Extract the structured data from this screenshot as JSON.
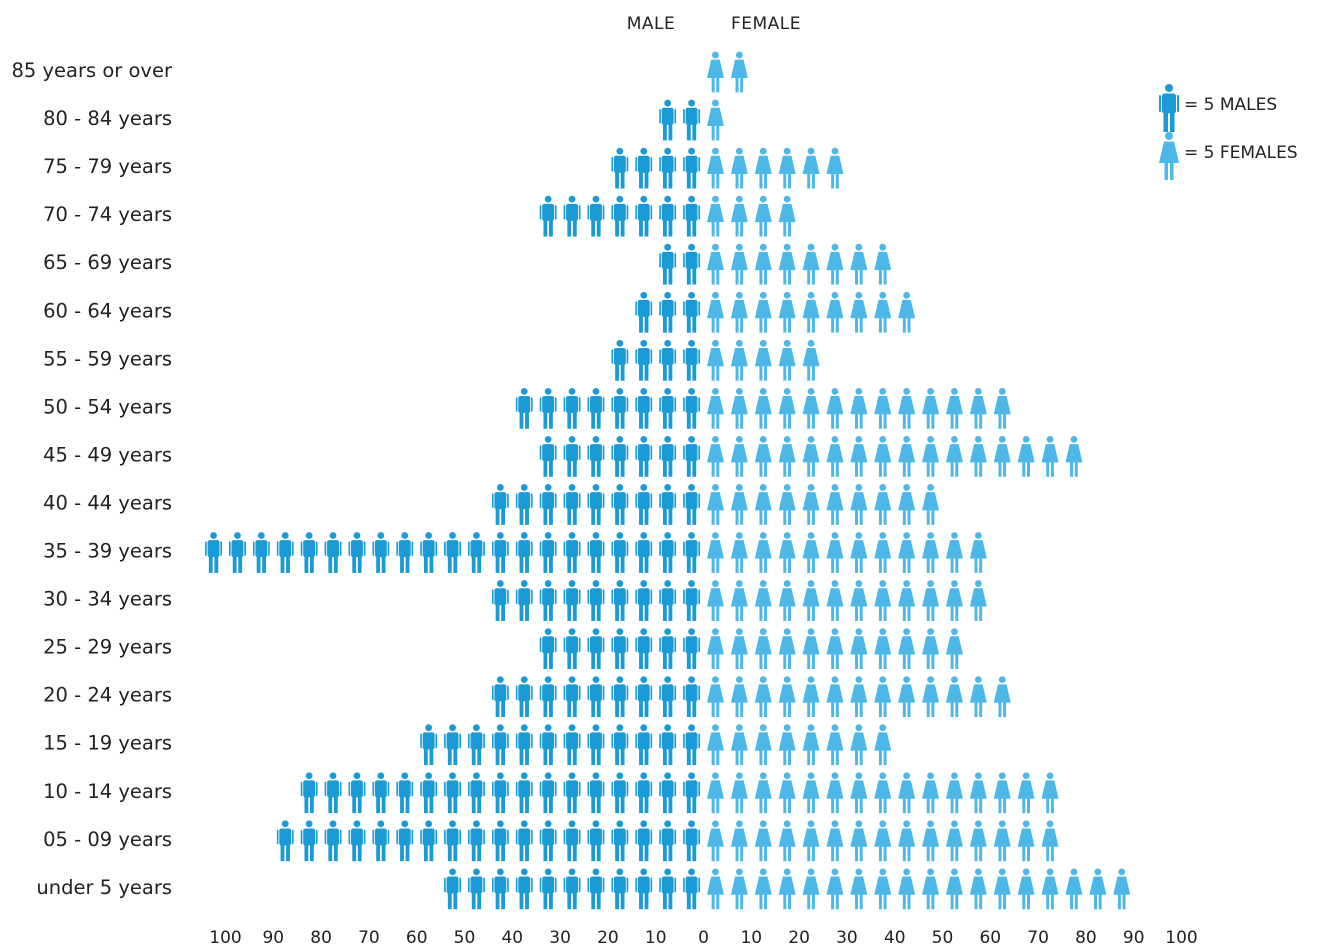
{
  "chart_data": {
    "type": "bar",
    "title": "",
    "unit_note": "each icon = 5 people",
    "column_headers": {
      "male": "MALE",
      "female": "FEMALE"
    },
    "legend": {
      "male": "= 5 MALES",
      "female": "= 5 FEMALES"
    },
    "categories": [
      "85 years or over",
      "80 - 84 years",
      "75 - 79 years",
      "70 - 74 years",
      "65 - 69 years",
      "60 - 64 years",
      "55 - 59 years",
      "50 - 54 years",
      "45 - 49 years",
      "40 - 44 years",
      "35 - 39 years",
      "30 - 34 years",
      "25 - 29 years",
      "20 - 24 years",
      "15 - 19 years",
      "10 - 14 years",
      "05 - 09 years",
      "under 5 years"
    ],
    "series": [
      {
        "name": "MALE",
        "values": [
          0,
          10,
          20,
          35,
          10,
          15,
          20,
          40,
          35,
          45,
          105,
          45,
          35,
          45,
          60,
          85,
          90,
          55
        ]
      },
      {
        "name": "FEMALE",
        "values": [
          10,
          5,
          30,
          20,
          40,
          45,
          25,
          65,
          80,
          50,
          60,
          60,
          55,
          65,
          40,
          75,
          75,
          90
        ]
      }
    ],
    "x_ticks_male": [
      "100",
      "90",
      "80",
      "70",
      "60",
      "50",
      "40",
      "30",
      "20",
      "10"
    ],
    "x_ticks_center": "0",
    "x_ticks_female": [
      "10",
      "20",
      "30",
      "40",
      "50",
      "60",
      "70",
      "80",
      "90",
      "100"
    ],
    "xlim": [
      0,
      100
    ],
    "grid": false,
    "legend_position": "top-right",
    "colors": {
      "male": "#1a9bd6",
      "female": "#4db8e8",
      "text": "#222222"
    },
    "icons": {
      "male": "male-person-icon",
      "female": "female-person-icon"
    }
  }
}
